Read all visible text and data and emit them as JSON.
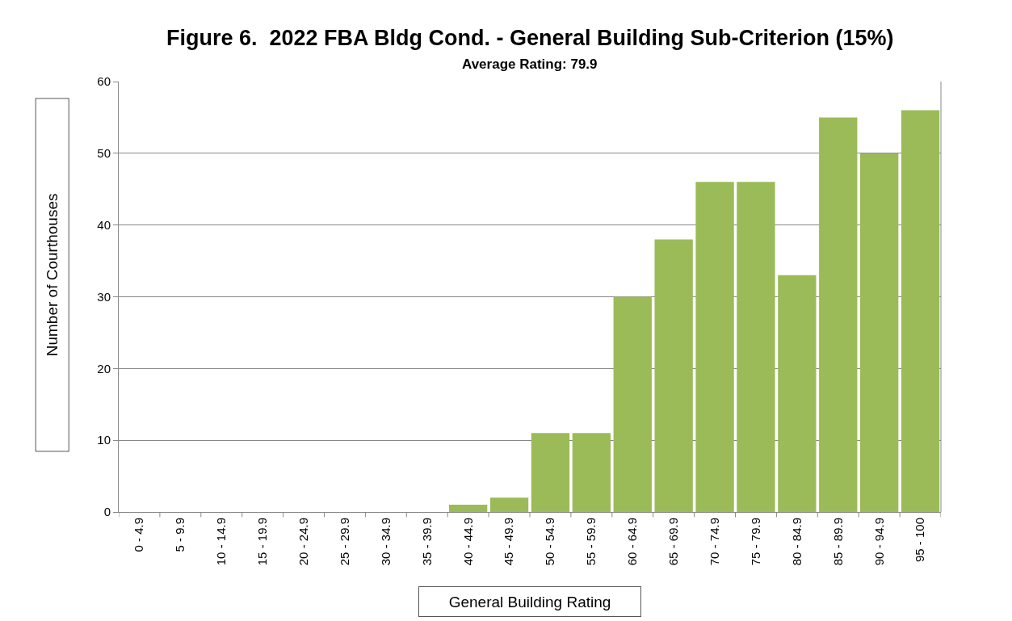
{
  "chart_data": {
    "type": "bar",
    "title": "Figure 6.  2022 FBA Bldg Cond. - General Building Sub-Criterion (15%)",
    "subtitle": "Average Rating: 79.9",
    "xlabel": "General Building Rating",
    "ylabel": "Number of Courthouses",
    "categories": [
      "0 - 4.9",
      "5 - 9.9",
      "10 - 14.9",
      "15 - 19.9",
      "20 - 24.9",
      "25 - 29.9",
      "30 - 34.9",
      "35 - 39.9",
      "40 - 44.9",
      "45 - 49.9",
      "50 - 54.9",
      "55 - 59.9",
      "60 - 64.9",
      "65 - 69.9",
      "70 - 74.9",
      "75 - 79.9",
      "80 - 84.9",
      "85 - 89.9",
      "90 - 94.9",
      "95 - 100"
    ],
    "values": [
      0,
      0,
      0,
      0,
      0,
      0,
      0,
      0,
      1,
      2,
      11,
      11,
      30,
      38,
      46,
      46,
      33,
      55,
      50,
      56
    ],
    "color": "#9bbb59",
    "ylim": [
      0,
      60
    ],
    "yticks": [
      0,
      10,
      20,
      30,
      40,
      50,
      60
    ],
    "grid": "y",
    "legend": false
  }
}
